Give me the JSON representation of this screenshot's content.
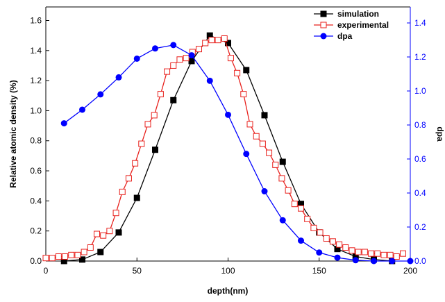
{
  "chart_data": {
    "type": "line",
    "xlabel": "depth(nm)",
    "ylabel": "Relative atomic density (%)",
    "y2label": "dpa",
    "xlim": [
      0,
      200
    ],
    "xticks": [
      0,
      50,
      100,
      150,
      200
    ],
    "ylim": [
      0,
      1.69
    ],
    "yticks": [
      {
        "value": 0,
        "label": "0.0"
      },
      {
        "value": 0.2,
        "label": "0.2"
      },
      {
        "value": 0.4,
        "label": "0.4"
      },
      {
        "value": 0.6,
        "label": "0.6"
      },
      {
        "value": 0.8,
        "label": "0.8"
      },
      {
        "value": 1.0,
        "label": "1.0"
      },
      {
        "value": 1.2,
        "label": "1.2"
      },
      {
        "value": 1.4,
        "label": "1.4"
      },
      {
        "value": 1.6,
        "label": "1.6"
      }
    ],
    "y2lim": [
      0,
      1.494
    ],
    "y2ticks": [
      {
        "value": 0,
        "label": "0.0"
      },
      {
        "value": 0.2,
        "label": "0.2"
      },
      {
        "value": 0.4,
        "label": "0.4"
      },
      {
        "value": 0.6,
        "label": "0.6"
      },
      {
        "value": 0.8,
        "label": "0.8"
      },
      {
        "value": 1.0,
        "label": "1.0"
      },
      {
        "value": 1.2,
        "label": "1.2"
      },
      {
        "value": 1.4,
        "label": "1.4"
      }
    ],
    "y2color": "#0000ff",
    "legend": "top-right",
    "series": [
      {
        "name": "simulation",
        "color": "#000000",
        "marker": "square",
        "x": [
          10,
          20,
          30,
          40,
          50,
          60,
          70,
          80,
          90,
          100,
          110,
          120,
          130,
          140,
          150,
          160,
          170,
          180,
          190
        ],
        "values": [
          0.0,
          0.01,
          0.06,
          0.19,
          0.42,
          0.74,
          1.07,
          1.33,
          1.5,
          1.45,
          1.27,
          0.97,
          0.66,
          0.38,
          0.19,
          0.08,
          0.03,
          0.01,
          0.0
        ]
      },
      {
        "name": "experimental",
        "color": "#e8201c",
        "marker": "square-open",
        "x": [
          0,
          3.5,
          7,
          10.5,
          14,
          17.5,
          21,
          24.5,
          28,
          31.5,
          35,
          38.5,
          42,
          45.5,
          49,
          52.5,
          56,
          59.5,
          63,
          66.5,
          70,
          73.5,
          77,
          80.5,
          84,
          87.5,
          91,
          94.5,
          98,
          101.5,
          105,
          108.5,
          112,
          115.5,
          119,
          122.5,
          126,
          129.5,
          133,
          136.5,
          140,
          143.5,
          147,
          150.5,
          154,
          157.5,
          161,
          164.5,
          168,
          171.5,
          175,
          178.5,
          182,
          185.5,
          189,
          192.5,
          196
        ],
        "values": [
          0.02,
          0.02,
          0.03,
          0.03,
          0.04,
          0.04,
          0.06,
          0.09,
          0.18,
          0.17,
          0.2,
          0.32,
          0.46,
          0.55,
          0.65,
          0.78,
          0.91,
          0.97,
          1.11,
          1.26,
          1.3,
          1.34,
          1.35,
          1.39,
          1.41,
          1.45,
          1.47,
          1.47,
          1.48,
          1.35,
          1.25,
          1.11,
          0.91,
          0.83,
          0.78,
          0.72,
          0.64,
          0.55,
          0.47,
          0.38,
          0.35,
          0.28,
          0.22,
          0.19,
          0.15,
          0.13,
          0.11,
          0.09,
          0.07,
          0.06,
          0.06,
          0.05,
          0.05,
          0.04,
          0.04,
          0.03,
          0.05
        ]
      },
      {
        "name": "dpa",
        "color": "#0000ff",
        "marker": "circle",
        "axis": "y2",
        "x": [
          10,
          20,
          30,
          40,
          50,
          60,
          70,
          80,
          90,
          100,
          110,
          120,
          130,
          140,
          150,
          160,
          170,
          180,
          190,
          200
        ],
        "values": [
          0.81,
          0.89,
          0.98,
          1.08,
          1.19,
          1.25,
          1.27,
          1.21,
          1.06,
          0.86,
          0.63,
          0.41,
          0.24,
          0.12,
          0.05,
          0.02,
          0.005,
          0.0,
          0.0,
          0.0
        ]
      }
    ]
  }
}
